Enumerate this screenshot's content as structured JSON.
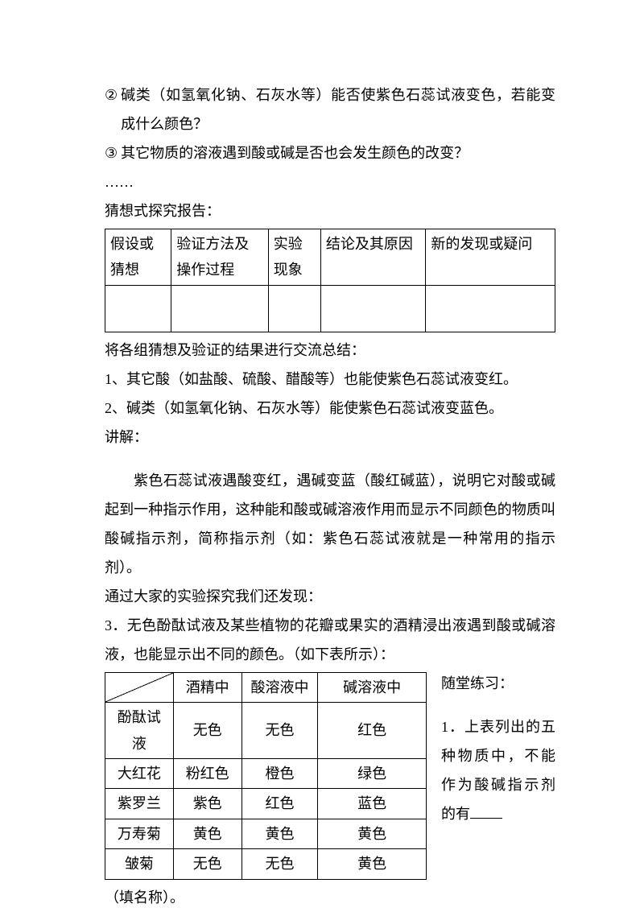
{
  "list1": {
    "item2_num": "②",
    "item2_text": "碱类（如氢氧化钠、石灰水等）能否使紫色石蕊试液变色，若能变成什么颜色？",
    "item3_num": "③",
    "item3_text": "其它物质的溶液遇到酸或碱是否也会发生颜色的改变？",
    "ellipsis": "……"
  },
  "report_heading": "猜想式探究报告：",
  "table1": {
    "headers": [
      "假设或猜想",
      "验证方法及操作过程",
      "实验现象",
      "结论及其原因",
      "新的发现或疑问"
    ]
  },
  "summary_intro": "将各组猜想及验证的结果进行交流总结：",
  "summary1": "1、其它酸（如盐酸、硫酸、醋酸等）也能使紫色石蕊试液变红。",
  "summary2": "2、碱类（如氢氧化钠、石灰水等）能使紫色石蕊试液变蓝色。",
  "explain_label": "讲解：",
  "explain_body": "紫色石蕊试液遇酸变红，遇碱变蓝（酸红碱蓝），说明它对酸或碱起到一种指示作用，这种能和酸或碱溶液作用而显示不同颜色的物质叫酸碱指示剂，简称指示剂（如：紫色石蕊试液就是一种常用的指示剂）。",
  "discover_intro": "通过大家的实验探究我们还发现：",
  "point3": "3．无色酚酞试液及某些植物的花瓣或果实的酒精浸出液遇到酸或碱溶液，也能显示出不同的颜色。（如下表所示）：",
  "table2": {
    "header": [
      "",
      "酒精中",
      "酸溶液中",
      "碱溶液中"
    ],
    "rows": [
      [
        "酚酞试液",
        "无色",
        "无色",
        "红色"
      ],
      [
        "大红花",
        "粉红色",
        "橙色",
        "绿色"
      ],
      [
        "紫罗兰",
        "紫色",
        "红色",
        "蓝色"
      ],
      [
        "万寿菊",
        "黄色",
        "黄色",
        "黄色"
      ],
      [
        "皱菊",
        "无色",
        "无色",
        "黄色"
      ]
    ]
  },
  "practice_heading": "随堂练习：",
  "practice_q1_part1": "1．上表列出的五种物质中，不能作为酸碱指示剂的有",
  "practice_q1_part2": "（填名称）。"
}
